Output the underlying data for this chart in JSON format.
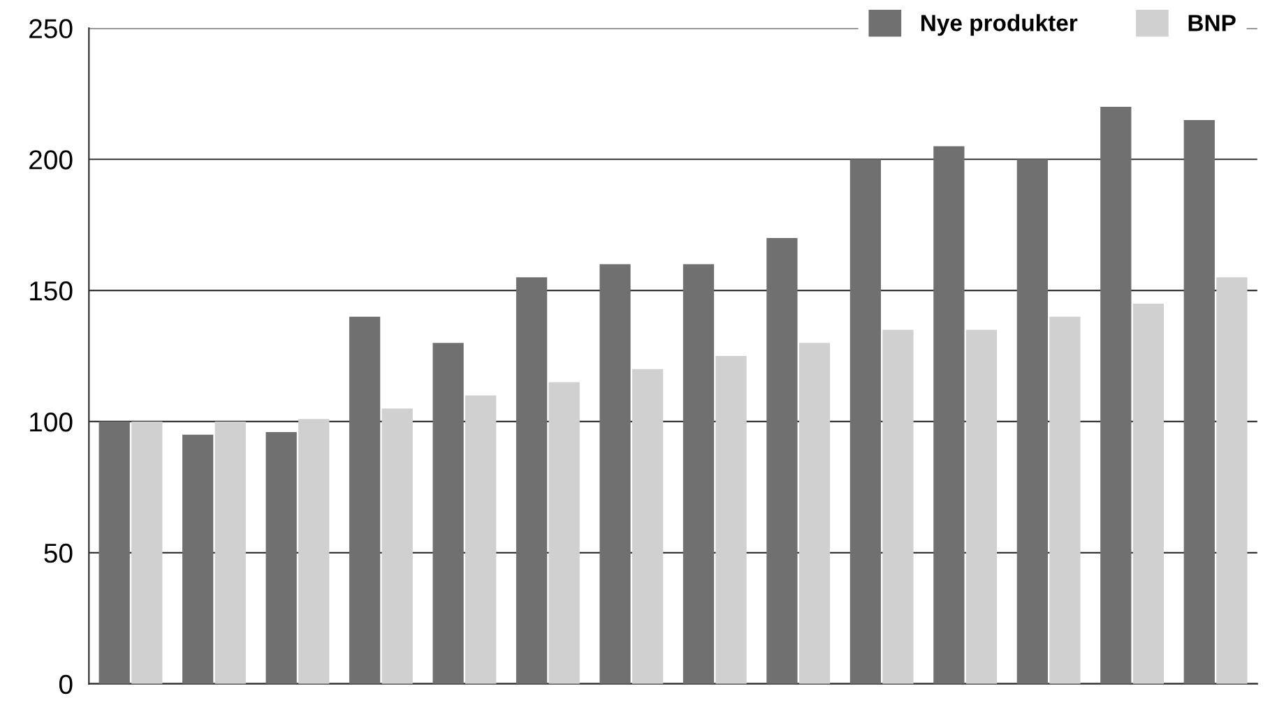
{
  "chart_data": {
    "type": "bar",
    "categories": [
      null,
      null,
      null,
      null,
      null,
      null,
      null,
      null,
      null,
      null,
      null,
      null,
      null,
      null
    ],
    "series": [
      {
        "name": "Nye produkter",
        "color": "#707070",
        "values": [
          100,
          95,
          96,
          140,
          130,
          155,
          160,
          160,
          170,
          200,
          205,
          200,
          220,
          215
        ]
      },
      {
        "name": "BNP",
        "color": "#d0d0d0",
        "values": [
          100,
          100,
          101,
          105,
          110,
          115,
          120,
          125,
          130,
          135,
          135,
          140,
          145,
          155
        ]
      }
    ],
    "ylim": [
      0,
      250
    ],
    "yticks": [
      0,
      50,
      100,
      150,
      200,
      250
    ],
    "grid": "y",
    "legend": "top right"
  }
}
